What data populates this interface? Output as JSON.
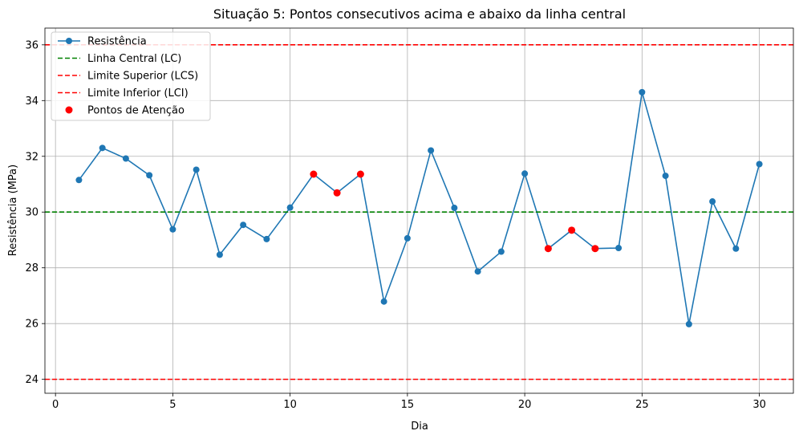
{
  "chart_data": {
    "type": "line",
    "title": "Situação 5: Pontos consecutivos acima e abaixo da linha central",
    "xlabel": "Dia",
    "ylabel": "Resistência (MPa)",
    "xlim": [
      -0.45,
      31.45
    ],
    "ylim": [
      23.5,
      36.6
    ],
    "xticks": [
      0,
      5,
      10,
      15,
      20,
      25,
      30
    ],
    "yticks": [
      24,
      26,
      28,
      30,
      32,
      34,
      36
    ],
    "grid": true,
    "legend_position": "top-left",
    "series": [
      {
        "name": "Resistência",
        "kind": "line-marker",
        "color": "#1f77b4",
        "x": [
          1,
          2,
          3,
          4,
          5,
          6,
          7,
          8,
          9,
          10,
          11,
          12,
          13,
          14,
          15,
          16,
          17,
          18,
          19,
          20,
          21,
          22,
          23,
          24,
          25,
          26,
          27,
          28,
          29,
          30
        ],
        "values": [
          31.15,
          32.3,
          31.92,
          31.32,
          29.38,
          31.52,
          28.47,
          29.54,
          29.03,
          30.16,
          31.36,
          30.69,
          31.36,
          26.79,
          29.06,
          32.21,
          30.15,
          27.87,
          28.58,
          31.38,
          28.69,
          29.35,
          28.69,
          28.71,
          34.3,
          31.3,
          25.98,
          30.38,
          28.69,
          31.72
        ]
      },
      {
        "name": "Linha Central (LC)",
        "kind": "hline",
        "color": "#008000",
        "value": 30
      },
      {
        "name": "Limite Superior (LCS)",
        "kind": "hline",
        "color": "#ff0000",
        "value": 36
      },
      {
        "name": "Limite Inferior (LCI)",
        "kind": "hline",
        "color": "#ff0000",
        "value": 24
      },
      {
        "name": "Pontos de Atenção",
        "kind": "scatter",
        "color": "#ff0000",
        "x": [
          11,
          12,
          13,
          21,
          22,
          23
        ],
        "values": [
          31.36,
          30.69,
          31.36,
          28.69,
          29.35,
          28.69
        ]
      }
    ]
  }
}
